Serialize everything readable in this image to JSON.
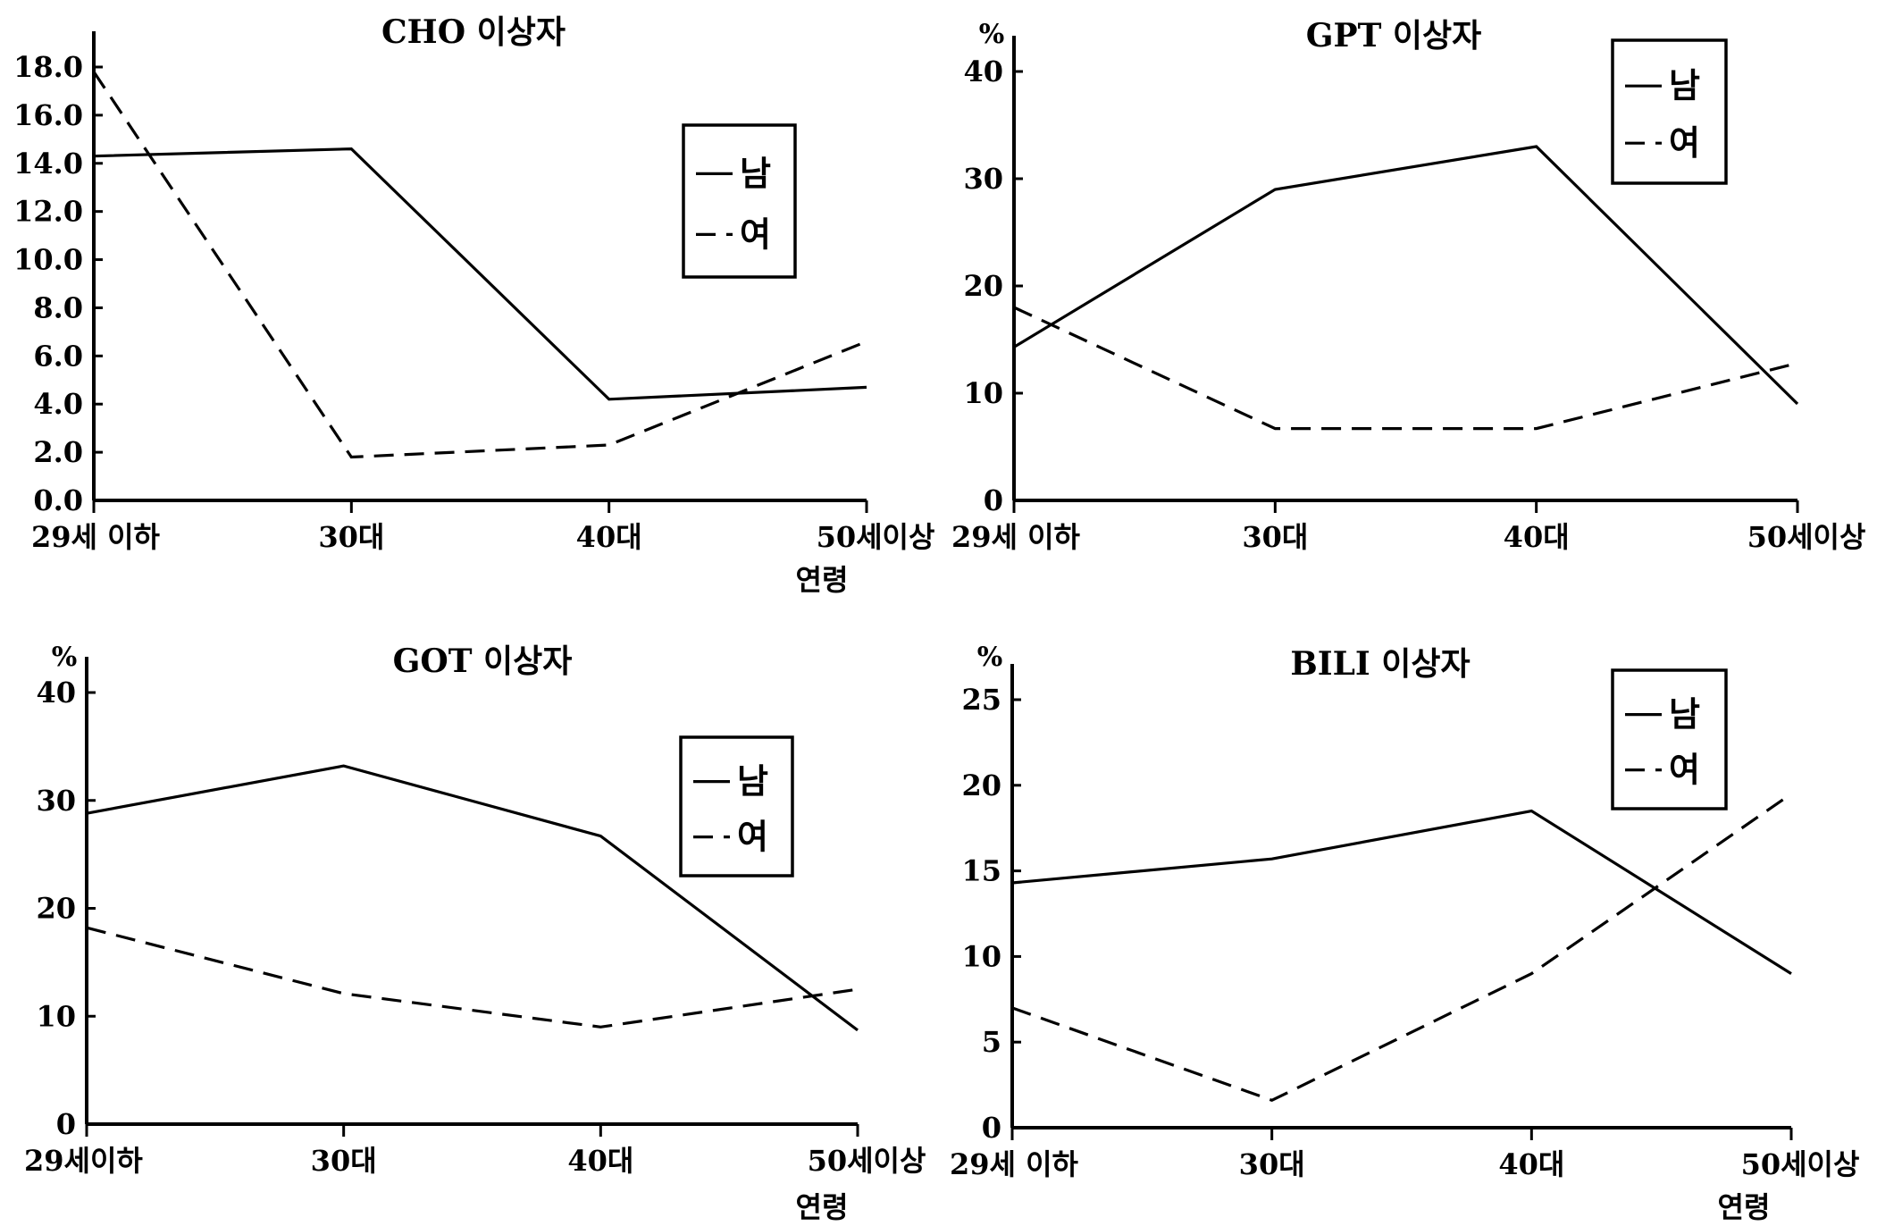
{
  "chart_data": [
    {
      "type": "line",
      "title": "CHO 이상자",
      "unit_label": "",
      "xlabel": "연령",
      "categories": [
        "29세 이하",
        "30대",
        "40대",
        "50세이상"
      ],
      "y_ticks": [
        "0.0",
        "2.0",
        "4.0",
        "6.0",
        "8.0",
        "10.0",
        "12.0",
        "14.0",
        "16.0",
        "18.0"
      ],
      "ylim": [
        0,
        18
      ],
      "series": [
        {
          "name": "남",
          "style": "solid",
          "values": [
            14.3,
            14.6,
            4.2,
            4.7
          ]
        },
        {
          "name": "여",
          "style": "dashed",
          "values": [
            17.8,
            1.8,
            2.3,
            6.6
          ]
        }
      ],
      "legend_position": "top-right"
    },
    {
      "type": "line",
      "title": "GPT 이상자",
      "unit_label": "%",
      "xlabel": "",
      "categories": [
        "29세 이하",
        "30대",
        "40대",
        "50세이상"
      ],
      "y_ticks": [
        "0",
        "10",
        "20",
        "30",
        "40"
      ],
      "ylim": [
        0,
        40
      ],
      "series": [
        {
          "name": "남",
          "style": "solid",
          "values": [
            14.3,
            29,
            33,
            9
          ]
        },
        {
          "name": "여",
          "style": "dashed",
          "values": [
            18,
            6.7,
            6.7,
            12.8
          ]
        }
      ],
      "legend_position": "top-right"
    },
    {
      "type": "line",
      "title": "GOT 이상자",
      "unit_label": "%",
      "xlabel": "연령",
      "categories": [
        "29세이하",
        "30대",
        "40대",
        "50세이상"
      ],
      "y_ticks": [
        "0",
        "10",
        "20",
        "30",
        "40"
      ],
      "ylim": [
        0,
        40
      ],
      "series": [
        {
          "name": "남",
          "style": "solid",
          "values": [
            28.8,
            33.2,
            26.7,
            8.7
          ]
        },
        {
          "name": "여",
          "style": "dashed",
          "values": [
            18.2,
            12.1,
            9,
            12.5
          ]
        }
      ],
      "legend_position": "top-right"
    },
    {
      "type": "line",
      "title": "BILI 이상자",
      "unit_label": "%",
      "xlabel": "연령",
      "categories": [
        "29세 이하",
        "30대",
        "40대",
        "50세이상"
      ],
      "y_ticks": [
        "0",
        "5",
        "10",
        "15",
        "20",
        "25"
      ],
      "ylim": [
        0,
        25
      ],
      "series": [
        {
          "name": "남",
          "style": "solid",
          "values": [
            14.3,
            15.7,
            18.5,
            9
          ]
        },
        {
          "name": "여",
          "style": "dashed",
          "values": [
            7,
            1.6,
            9,
            19.5
          ]
        }
      ],
      "legend_position": "top-right"
    }
  ]
}
